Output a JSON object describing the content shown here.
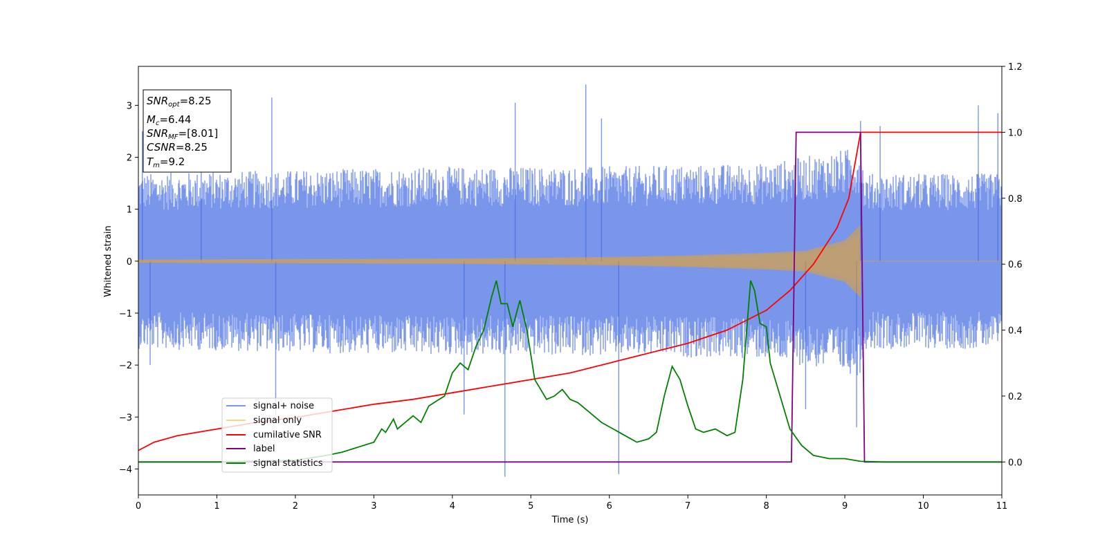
{
  "chart_data": {
    "type": "line",
    "title": "",
    "xlabel": "Time (s)",
    "ylabel": "Whitened strain",
    "xlim": [
      0,
      11
    ],
    "ylim": [
      -4.5,
      3.75
    ],
    "y2lim": [
      -0.1,
      1.2
    ],
    "xticks": [
      0,
      1,
      2,
      3,
      4,
      5,
      6,
      7,
      8,
      9,
      10,
      11
    ],
    "yticks": [
      -4,
      -3,
      -2,
      -1,
      0,
      1,
      2,
      3
    ],
    "y2ticks": [
      "0.0",
      "0.2",
      "0.4",
      "0.6",
      "0.8",
      "1.0",
      "1.2"
    ],
    "grid": false,
    "legend_position": "lower-left",
    "info_box": {
      "snr_opt": {
        "label": "SNR",
        "sub": "opt",
        "value": "=8.25"
      },
      "mc": {
        "label": "M",
        "sub": "c",
        "value": "=6.44"
      },
      "snr_mf": {
        "label": "SNR",
        "sub": "MF",
        "value": "=[8.01]"
      },
      "csnr": {
        "label": "CSNR",
        "value": "=8.25"
      },
      "tm": {
        "label": "T",
        "sub": "m",
        "value": "=9.2"
      }
    },
    "colors": {
      "noise": "#4169e1",
      "signal": "#ffa500",
      "csnr": "#ff0000",
      "label": "#800080",
      "stats": "#008000"
    },
    "series": [
      {
        "name": "signal+ noise",
        "axis": "left",
        "style": "noise",
        "t_range": [
          0,
          11
        ],
        "envelope": [
          [
            0,
            1.3
          ],
          [
            3.8,
            1.4
          ],
          [
            5.8,
            1.4
          ],
          [
            8.0,
            1.45
          ],
          [
            9.2,
            1.7
          ],
          [
            9.25,
            1.3
          ],
          [
            11,
            1.3
          ]
        ],
        "spikes": [
          [
            0.05,
            2.5
          ],
          [
            0.15,
            -2.0
          ],
          [
            0.8,
            2.7
          ],
          [
            1.7,
            3.15
          ],
          [
            1.75,
            -2.95
          ],
          [
            4.15,
            -2.95
          ],
          [
            4.67,
            -4.15
          ],
          [
            4.8,
            3.05
          ],
          [
            5.7,
            3.4
          ],
          [
            5.9,
            2.75
          ],
          [
            6.12,
            -4.1
          ],
          [
            8.5,
            -2.85
          ],
          [
            9.15,
            -3.2
          ],
          [
            9.2,
            2.7
          ],
          [
            9.45,
            2.6
          ],
          [
            10.7,
            3.0
          ],
          [
            10.95,
            2.85
          ]
        ]
      },
      {
        "name": "signal only",
        "axis": "left",
        "style": "chirp",
        "t_end": 9.2,
        "amplitude": [
          [
            0,
            0.03
          ],
          [
            2,
            0.04
          ],
          [
            4,
            0.05
          ],
          [
            6,
            0.08
          ],
          [
            7,
            0.11
          ],
          [
            8,
            0.16
          ],
          [
            8.5,
            0.2
          ],
          [
            9.0,
            0.4
          ],
          [
            9.2,
            0.7
          ]
        ]
      },
      {
        "name": "cumilative SNR",
        "axis": "right",
        "x": [
          0,
          0.2,
          0.5,
          1,
          1.5,
          2,
          2.5,
          3,
          3.5,
          4,
          4.5,
          5,
          5.5,
          6,
          6.5,
          7,
          7.5,
          8,
          8.3,
          8.6,
          8.9,
          9.05,
          9.2,
          11
        ],
        "y": [
          0.035,
          0.06,
          0.08,
          0.1,
          0.12,
          0.135,
          0.155,
          0.175,
          0.19,
          0.21,
          0.23,
          0.25,
          0.27,
          0.3,
          0.33,
          0.36,
          0.4,
          0.46,
          0.52,
          0.6,
          0.71,
          0.8,
          1.0,
          1.0
        ]
      },
      {
        "name": "label",
        "axis": "right",
        "x": [
          0,
          8.32,
          8.38,
          9.2,
          9.25,
          11
        ],
        "y": [
          0,
          0,
          1,
          1,
          0,
          0
        ]
      },
      {
        "name": "signal statistics",
        "axis": "right",
        "x": [
          0,
          1,
          2,
          2.4,
          2.6,
          2.8,
          3.0,
          3.1,
          3.15,
          3.25,
          3.3,
          3.4,
          3.5,
          3.6,
          3.7,
          3.9,
          4.0,
          4.1,
          4.2,
          4.3,
          4.4,
          4.5,
          4.56,
          4.62,
          4.7,
          4.77,
          4.86,
          4.95,
          5.05,
          5.2,
          5.3,
          5.4,
          5.5,
          5.6,
          5.75,
          5.9,
          6.05,
          6.2,
          6.35,
          6.5,
          6.6,
          6.7,
          6.8,
          6.9,
          7.0,
          7.1,
          7.2,
          7.35,
          7.5,
          7.6,
          7.7,
          7.8,
          7.85,
          7.92,
          8.0,
          8.05,
          8.15,
          8.3,
          8.45,
          8.6,
          8.8,
          9.0,
          9.2,
          9.5,
          11
        ],
        "y": [
          0,
          0,
          0.005,
          0.02,
          0.03,
          0.045,
          0.06,
          0.1,
          0.09,
          0.13,
          0.1,
          0.12,
          0.14,
          0.12,
          0.17,
          0.2,
          0.27,
          0.3,
          0.28,
          0.35,
          0.4,
          0.5,
          0.55,
          0.48,
          0.48,
          0.41,
          0.49,
          0.4,
          0.25,
          0.19,
          0.2,
          0.22,
          0.19,
          0.18,
          0.15,
          0.12,
          0.1,
          0.08,
          0.06,
          0.07,
          0.09,
          0.2,
          0.29,
          0.25,
          0.17,
          0.1,
          0.09,
          0.1,
          0.08,
          0.09,
          0.25,
          0.55,
          0.52,
          0.42,
          0.41,
          0.3,
          0.22,
          0.1,
          0.05,
          0.02,
          0.01,
          0.01,
          0.002,
          0,
          0
        ]
      }
    ]
  }
}
